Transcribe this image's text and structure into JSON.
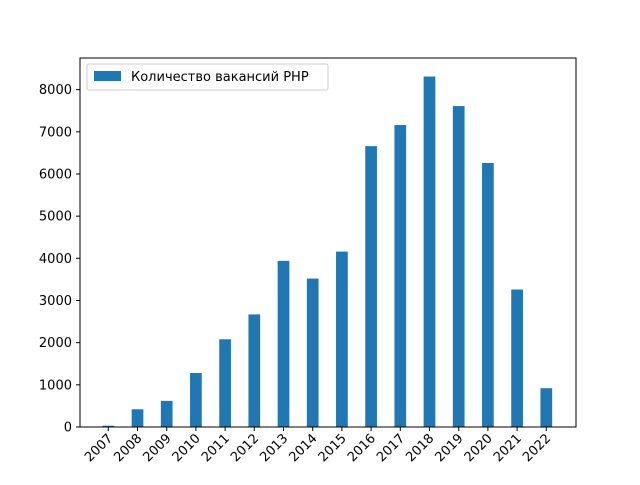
{
  "chart_data": {
    "type": "bar",
    "title": "",
    "xlabel": "",
    "ylabel": "",
    "categories": [
      "2007",
      "2008",
      "2009",
      "2010",
      "2011",
      "2012",
      "2013",
      "2014",
      "2015",
      "2016",
      "2017",
      "2018",
      "2019",
      "2020",
      "2021",
      "2022"
    ],
    "series": [
      {
        "name": "Количество вакансий PHP",
        "color": "#1f77b4",
        "values": [
          30,
          420,
          620,
          1280,
          2080,
          2670,
          3940,
          3520,
          4160,
          6660,
          7160,
          8310,
          7610,
          6260,
          3260,
          920
        ]
      }
    ],
    "ylim": [
      0,
      8750
    ],
    "yticks": [
      0,
      1000,
      2000,
      3000,
      4000,
      5000,
      6000,
      7000,
      8000
    ],
    "x_tick_rotation": 45,
    "grid": false,
    "legend": "upper-left"
  }
}
